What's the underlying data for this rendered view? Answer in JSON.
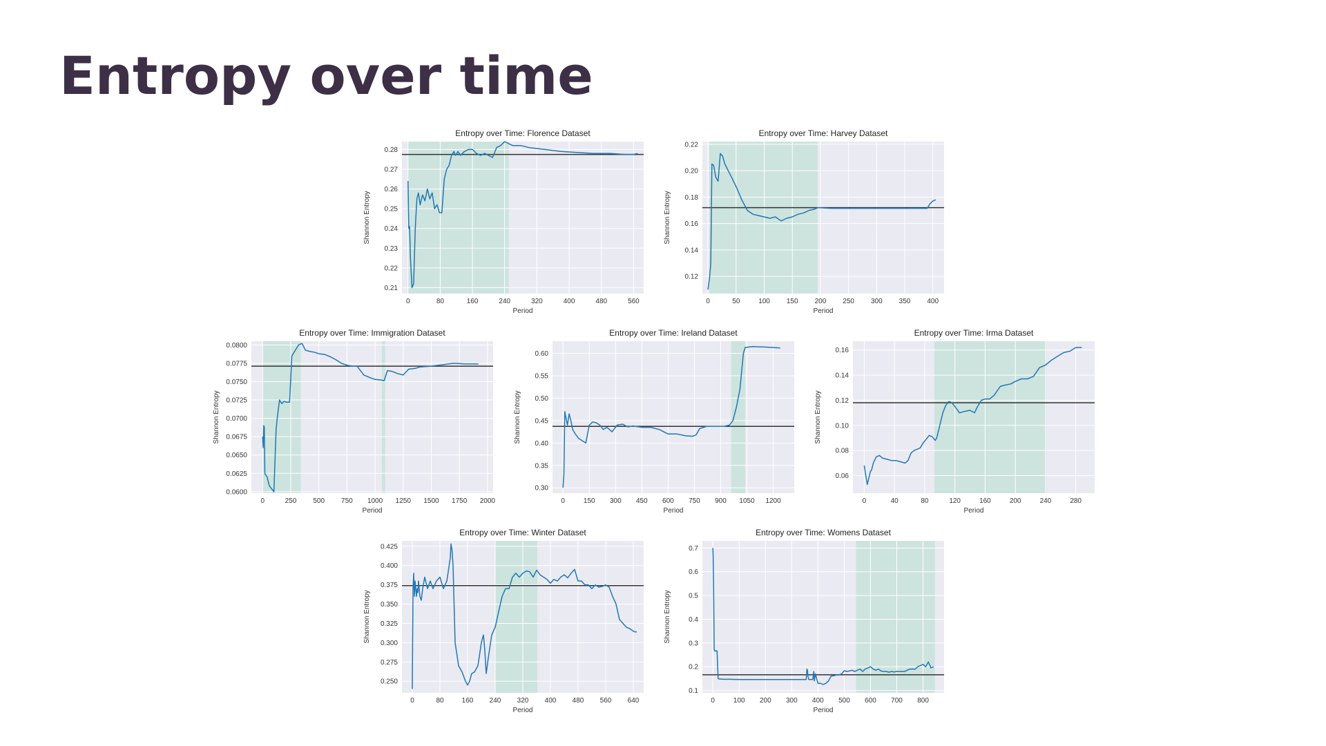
{
  "slide": {
    "title": "Entropy over time"
  },
  "colors": {
    "line": "#1f77b4",
    "mean": "#333333",
    "shade": "#cde3de",
    "plot_bg": "#eaeaf2",
    "title": "#3d2f45"
  },
  "chart_data": [
    {
      "type": "line",
      "title": "Entropy over Time: Florence Dataset",
      "xlabel": "Period",
      "ylabel": "Shannon Entropy",
      "xlim": [
        -15,
        585
      ],
      "ylim": [
        0.207,
        0.284
      ],
      "xticks": [
        0,
        80,
        160,
        240,
        320,
        400,
        480,
        560
      ],
      "yticks": [
        0.21,
        0.22,
        0.23,
        0.24,
        0.25,
        0.26,
        0.27,
        0.28
      ],
      "ytick_decimals": 2,
      "mean_line": 0.2775,
      "shade": [
        [
          0,
          250
        ]
      ],
      "x": [
        0,
        2,
        4,
        6,
        10,
        14,
        18,
        22,
        26,
        30,
        36,
        42,
        48,
        54,
        60,
        66,
        72,
        78,
        84,
        90,
        96,
        102,
        108,
        114,
        118,
        124,
        130,
        140,
        150,
        160,
        170,
        180,
        190,
        200,
        210,
        220,
        230,
        235,
        240,
        250,
        260,
        280,
        300,
        340,
        380,
        420,
        460,
        500,
        540,
        560,
        570
      ],
      "y": [
        0.264,
        0.24,
        0.241,
        0.225,
        0.21,
        0.212,
        0.24,
        0.255,
        0.258,
        0.252,
        0.257,
        0.254,
        0.26,
        0.255,
        0.258,
        0.25,
        0.252,
        0.248,
        0.248,
        0.265,
        0.27,
        0.272,
        0.277,
        0.279,
        0.277,
        0.279,
        0.277,
        0.279,
        0.28,
        0.28,
        0.278,
        0.277,
        0.278,
        0.277,
        0.276,
        0.281,
        0.282,
        0.283,
        0.284,
        0.283,
        0.282,
        0.282,
        0.281,
        0.28,
        0.279,
        0.2785,
        0.278,
        0.278,
        0.2775,
        0.2775,
        0.278
      ]
    },
    {
      "type": "line",
      "title": "Entropy over Time: Harvey Dataset",
      "xlabel": "Period",
      "ylabel": "Shannon Entropy",
      "xlim": [
        -10,
        420
      ],
      "ylim": [
        0.107,
        0.222
      ],
      "xticks": [
        0,
        50,
        100,
        150,
        200,
        250,
        300,
        350,
        400
      ],
      "yticks": [
        0.12,
        0.14,
        0.16,
        0.18,
        0.2,
        0.22
      ],
      "ytick_decimals": 2,
      "mean_line": 0.172,
      "shade": [
        [
          2,
          195
        ]
      ],
      "x": [
        0,
        3,
        5,
        7,
        10,
        14,
        18,
        22,
        26,
        30,
        36,
        42,
        50,
        60,
        70,
        80,
        90,
        100,
        110,
        120,
        130,
        140,
        150,
        160,
        170,
        180,
        190,
        195,
        200,
        220,
        250,
        280,
        300,
        330,
        360,
        380,
        390,
        395,
        400,
        405
      ],
      "y": [
        0.11,
        0.12,
        0.13,
        0.205,
        0.204,
        0.195,
        0.192,
        0.213,
        0.211,
        0.205,
        0.2,
        0.195,
        0.188,
        0.178,
        0.17,
        0.167,
        0.166,
        0.165,
        0.164,
        0.165,
        0.162,
        0.164,
        0.165,
        0.167,
        0.168,
        0.17,
        0.171,
        0.172,
        0.172,
        0.1715,
        0.1715,
        0.1715,
        0.1715,
        0.1715,
        0.1715,
        0.1715,
        0.1715,
        0.175,
        0.177,
        0.178
      ]
    },
    {
      "type": "line",
      "title": "Entropy over Time: Immigration Dataset",
      "xlabel": "Period",
      "ylabel": "Shannon Entropy",
      "xlim": [
        -100,
        2050
      ],
      "ylim": [
        0.0598,
        0.0805
      ],
      "xticks": [
        0,
        250,
        500,
        750,
        1000,
        1250,
        1500,
        1750,
        2000
      ],
      "yticks": [
        0.06,
        0.0625,
        0.065,
        0.0675,
        0.07,
        0.0725,
        0.075,
        0.0775,
        0.08
      ],
      "ytick_decimals": 4,
      "mean_line": 0.0771,
      "shade": [
        [
          0,
          340
        ],
        [
          1060,
          1090
        ]
      ],
      "x": [
        0,
        5,
        10,
        15,
        20,
        30,
        40,
        60,
        80,
        100,
        120,
        130,
        150,
        170,
        190,
        210,
        240,
        260,
        280,
        300,
        320,
        350,
        380,
        420,
        460,
        500,
        550,
        600,
        650,
        700,
        760,
        800,
        840,
        900,
        960,
        1000,
        1060,
        1080,
        1110,
        1150,
        1200,
        1250,
        1300,
        1360,
        1400,
        1500,
        1600,
        1700,
        1800,
        1900,
        1920
      ],
      "y": [
        0.0675,
        0.066,
        0.069,
        0.0688,
        0.0625,
        0.0622,
        0.062,
        0.0608,
        0.0604,
        0.06,
        0.0685,
        0.07,
        0.0725,
        0.072,
        0.0723,
        0.0722,
        0.0722,
        0.0785,
        0.079,
        0.0795,
        0.08,
        0.0802,
        0.0793,
        0.0791,
        0.079,
        0.0788,
        0.0787,
        0.0784,
        0.078,
        0.0775,
        0.0772,
        0.0771,
        0.0771,
        0.0759,
        0.0755,
        0.0753,
        0.0752,
        0.0751,
        0.0765,
        0.0764,
        0.0761,
        0.0759,
        0.0767,
        0.0768,
        0.077,
        0.0771,
        0.0773,
        0.0775,
        0.0774,
        0.0774,
        0.0774
      ]
    },
    {
      "type": "line",
      "title": "Entropy over Time: Ireland Dataset",
      "xlabel": "Period",
      "ylabel": "Shannon Entropy",
      "xlim": [
        -60,
        1320
      ],
      "ylim": [
        0.288,
        0.627
      ],
      "xticks": [
        0,
        150,
        300,
        450,
        600,
        750,
        900,
        1050,
        1200
      ],
      "yticks": [
        0.3,
        0.35,
        0.4,
        0.45,
        0.5,
        0.55,
        0.6
      ],
      "ytick_decimals": 2,
      "mean_line": 0.437,
      "shade": [
        [
          960,
          1040
        ]
      ],
      "x": [
        0,
        5,
        10,
        15,
        25,
        35,
        45,
        55,
        70,
        90,
        110,
        130,
        150,
        170,
        190,
        210,
        230,
        250,
        280,
        310,
        340,
        370,
        400,
        450,
        500,
        550,
        600,
        650,
        700,
        740,
        760,
        780,
        820,
        870,
        920,
        950,
        970,
        990,
        1010,
        1020,
        1030,
        1040,
        1080,
        1150,
        1240
      ],
      "y": [
        0.3,
        0.33,
        0.47,
        0.46,
        0.44,
        0.465,
        0.45,
        0.43,
        0.42,
        0.41,
        0.405,
        0.4,
        0.44,
        0.447,
        0.445,
        0.44,
        0.43,
        0.435,
        0.425,
        0.44,
        0.442,
        0.436,
        0.438,
        0.435,
        0.435,
        0.43,
        0.42,
        0.42,
        0.416,
        0.415,
        0.418,
        0.432,
        0.437,
        0.437,
        0.437,
        0.44,
        0.45,
        0.48,
        0.52,
        0.56,
        0.6,
        0.613,
        0.615,
        0.614,
        0.612
      ]
    },
    {
      "type": "line",
      "title": "Entropy over Time: Irma Dataset",
      "xlabel": "Period",
      "ylabel": "Shannon Entropy",
      "xlim": [
        -15,
        305
      ],
      "ylim": [
        0.046,
        0.167
      ],
      "xticks": [
        0,
        40,
        80,
        120,
        160,
        200,
        240,
        280
      ],
      "yticks": [
        0.06,
        0.08,
        0.1,
        0.12,
        0.14,
        0.16
      ],
      "ytick_decimals": 2,
      "mean_line": 0.118,
      "shade": [
        [
          93,
          241
        ]
      ],
      "x": [
        0,
        2,
        4,
        6,
        8,
        10,
        12,
        16,
        20,
        24,
        30,
        36,
        42,
        48,
        54,
        58,
        62,
        66,
        70,
        74,
        78,
        82,
        86,
        90,
        94,
        96,
        100,
        104,
        108,
        112,
        116,
        120,
        126,
        132,
        140,
        146,
        150,
        155,
        160,
        166,
        172,
        180,
        186,
        194,
        200,
        208,
        216,
        224,
        232,
        240,
        248,
        256,
        264,
        272,
        280,
        288
      ],
      "y": [
        0.068,
        0.06,
        0.053,
        0.058,
        0.063,
        0.065,
        0.07,
        0.075,
        0.076,
        0.074,
        0.073,
        0.072,
        0.072,
        0.071,
        0.07,
        0.072,
        0.078,
        0.08,
        0.081,
        0.082,
        0.086,
        0.089,
        0.092,
        0.091,
        0.088,
        0.09,
        0.1,
        0.11,
        0.116,
        0.119,
        0.118,
        0.115,
        0.11,
        0.111,
        0.112,
        0.11,
        0.115,
        0.12,
        0.121,
        0.121,
        0.124,
        0.131,
        0.132,
        0.133,
        0.135,
        0.137,
        0.137,
        0.139,
        0.146,
        0.148,
        0.152,
        0.155,
        0.158,
        0.159,
        0.162,
        0.162
      ]
    },
    {
      "type": "line",
      "title": "Entropy over Time: Winter Dataset",
      "xlabel": "Period",
      "ylabel": "Shannon Entropy",
      "xlim": [
        -30,
        670
      ],
      "ylim": [
        0.235,
        0.432
      ],
      "xticks": [
        0,
        80,
        160,
        240,
        320,
        400,
        480,
        560,
        640
      ],
      "yticks": [
        0.25,
        0.275,
        0.3,
        0.325,
        0.35,
        0.375,
        0.4,
        0.425
      ],
      "ytick_decimals": 3,
      "mean_line": 0.374,
      "shade": [
        [
          240,
          362
        ]
      ],
      "x": [
        0,
        2,
        4,
        6,
        8,
        10,
        12,
        14,
        16,
        18,
        20,
        22,
        26,
        30,
        36,
        44,
        52,
        60,
        70,
        80,
        90,
        100,
        110,
        112,
        115,
        118,
        124,
        134,
        144,
        154,
        160,
        166,
        172,
        180,
        190,
        200,
        206,
        210,
        214,
        220,
        230,
        240,
        250,
        260,
        270,
        280,
        290,
        300,
        310,
        320,
        330,
        340,
        350,
        360,
        370,
        380,
        390,
        400,
        410,
        420,
        430,
        440,
        450,
        460,
        470,
        480,
        490,
        500,
        510,
        520,
        530,
        540,
        550,
        560,
        570,
        580,
        590,
        600,
        610,
        620,
        630,
        640,
        645,
        650
      ],
      "y": [
        0.24,
        0.37,
        0.39,
        0.36,
        0.38,
        0.37,
        0.36,
        0.37,
        0.365,
        0.38,
        0.37,
        0.36,
        0.355,
        0.37,
        0.385,
        0.37,
        0.38,
        0.37,
        0.38,
        0.385,
        0.37,
        0.38,
        0.41,
        0.428,
        0.42,
        0.4,
        0.3,
        0.27,
        0.262,
        0.25,
        0.245,
        0.25,
        0.26,
        0.262,
        0.27,
        0.3,
        0.31,
        0.29,
        0.26,
        0.28,
        0.31,
        0.32,
        0.34,
        0.36,
        0.37,
        0.37,
        0.385,
        0.39,
        0.385,
        0.39,
        0.393,
        0.392,
        0.385,
        0.394,
        0.388,
        0.385,
        0.382,
        0.377,
        0.382,
        0.38,
        0.385,
        0.388,
        0.384,
        0.39,
        0.395,
        0.38,
        0.38,
        0.375,
        0.375,
        0.37,
        0.375,
        0.372,
        0.373,
        0.375,
        0.372,
        0.36,
        0.35,
        0.33,
        0.325,
        0.32,
        0.318,
        0.315,
        0.314,
        0.314
      ]
    },
    {
      "type": "line",
      "title": "Entropy over Time: Womens Dataset",
      "xlabel": "Period",
      "ylabel": "Shannon Entropy",
      "xlim": [
        -40,
        880
      ],
      "ylim": [
        0.09,
        0.73
      ],
      "xticks": [
        0,
        100,
        200,
        300,
        400,
        500,
        600,
        700,
        800
      ],
      "yticks": [
        0.1,
        0.2,
        0.3,
        0.4,
        0.5,
        0.6,
        0.7
      ],
      "ytick_decimals": 1,
      "mean_line": 0.166,
      "shade": [
        [
          545,
          845
        ]
      ],
      "x": [
        0,
        1,
        3,
        5,
        8,
        12,
        16,
        20,
        25,
        30,
        40,
        60,
        100,
        150,
        200,
        250,
        300,
        355,
        358,
        360,
        362,
        365,
        370,
        375,
        380,
        384,
        386,
        390,
        395,
        400,
        410,
        420,
        430,
        440,
        450,
        460,
        470,
        480,
        490,
        500,
        510,
        520,
        530,
        540,
        550,
        560,
        570,
        580,
        590,
        600,
        610,
        620,
        630,
        640,
        650,
        660,
        670,
        680,
        690,
        700,
        710,
        720,
        730,
        740,
        750,
        760,
        770,
        780,
        790,
        800,
        810,
        820,
        830,
        840
      ],
      "y": [
        0.7,
        0.67,
        0.5,
        0.27,
        0.265,
        0.268,
        0.265,
        0.15,
        0.148,
        0.148,
        0.147,
        0.147,
        0.146,
        0.146,
        0.146,
        0.146,
        0.146,
        0.146,
        0.19,
        0.185,
        0.16,
        0.146,
        0.146,
        0.146,
        0.146,
        0.18,
        0.14,
        0.17,
        0.15,
        0.13,
        0.13,
        0.125,
        0.13,
        0.14,
        0.16,
        0.162,
        0.165,
        0.165,
        0.17,
        0.183,
        0.18,
        0.182,
        0.185,
        0.18,
        0.185,
        0.19,
        0.18,
        0.19,
        0.195,
        0.2,
        0.19,
        0.185,
        0.19,
        0.182,
        0.18,
        0.18,
        0.177,
        0.18,
        0.178,
        0.18,
        0.18,
        0.18,
        0.18,
        0.185,
        0.19,
        0.19,
        0.19,
        0.2,
        0.205,
        0.21,
        0.2,
        0.22,
        0.195,
        0.2
      ]
    }
  ]
}
